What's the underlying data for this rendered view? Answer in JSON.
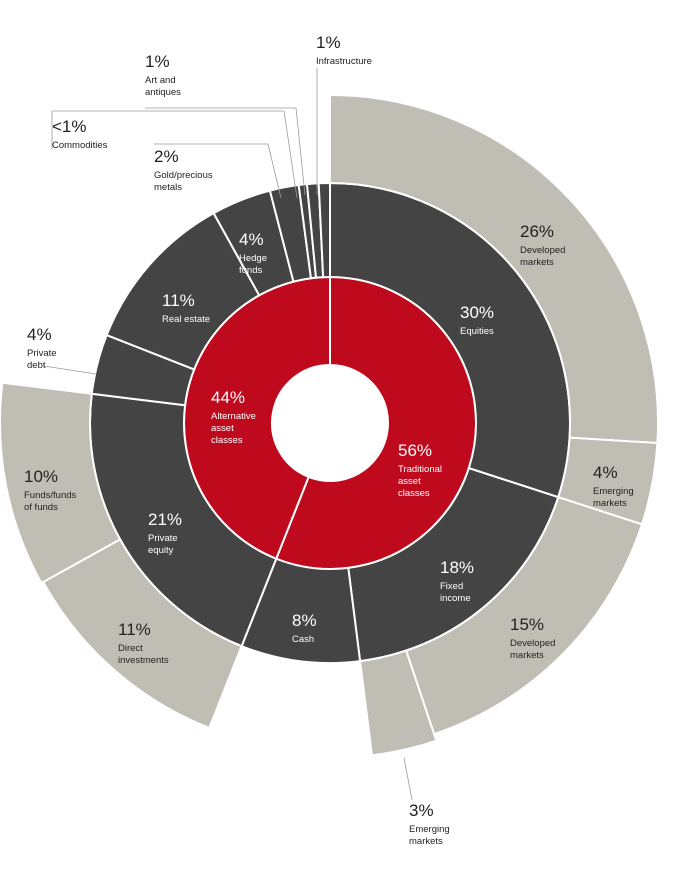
{
  "chart_data": {
    "type": "sunburst",
    "colors": {
      "inner": "#bf0a1e",
      "middle": "#444444",
      "outer": "#c0bdb5",
      "separator": "#ffffff",
      "text_dark": "#222222",
      "text_light": "#ffffff"
    },
    "rings": {
      "inner": [
        {
          "id": "traditional",
          "pct": "56%",
          "lines": [
            "Traditional",
            "asset",
            "classes"
          ],
          "value": 56
        },
        {
          "id": "alternative",
          "pct": "44%",
          "lines": [
            "Alternative",
            "asset",
            "classes"
          ],
          "value": 44
        }
      ],
      "middle": [
        {
          "id": "equities",
          "pct": "30%",
          "lines": [
            "Equities"
          ],
          "value": 30
        },
        {
          "id": "fixed-income",
          "pct": "18%",
          "lines": [
            "Fixed",
            "income"
          ],
          "value": 18
        },
        {
          "id": "cash",
          "pct": "8%",
          "lines": [
            "Cash"
          ],
          "value": 8
        },
        {
          "id": "private-equity",
          "pct": "21%",
          "lines": [
            "Private",
            "equity"
          ],
          "value": 21
        },
        {
          "id": "private-debt",
          "pct": "4%",
          "lines": [
            "Private",
            "debt"
          ],
          "value": 4
        },
        {
          "id": "real-estate",
          "pct": "11%",
          "lines": [
            "Real estate"
          ],
          "value": 11
        },
        {
          "id": "hedge-funds",
          "pct": "4%",
          "lines": [
            "Hedge",
            "funds"
          ],
          "value": 4
        },
        {
          "id": "gold",
          "pct": "2%",
          "lines": [
            "Gold/precious",
            "metals"
          ],
          "value": 2
        },
        {
          "id": "commodities",
          "pct": "<1%",
          "lines": [
            "Commodities"
          ],
          "value": 0.6
        },
        {
          "id": "art",
          "pct": "1%",
          "lines": [
            "Art and",
            "antiques"
          ],
          "value": 1
        },
        {
          "id": "infrastructure",
          "pct": "1%",
          "lines": [
            "Infrastructure"
          ],
          "value": 1
        }
      ],
      "outer": [
        {
          "id": "eq-developed",
          "pct": "26%",
          "lines": [
            "Developed",
            "markets"
          ],
          "value": 26
        },
        {
          "id": "eq-emerging",
          "pct": "4%",
          "lines": [
            "Emerging",
            "markets"
          ],
          "value": 4
        },
        {
          "id": "fi-developed",
          "pct": "15%",
          "lines": [
            "Developed",
            "markets"
          ],
          "value": 15
        },
        {
          "id": "fi-emerging",
          "pct": "3%",
          "lines": [
            "Emerging",
            "markets"
          ],
          "value": 3
        },
        {
          "id": "pe-direct",
          "pct": "11%",
          "lines": [
            "Direct",
            "investments"
          ],
          "value": 11
        },
        {
          "id": "pe-funds",
          "pct": "10%",
          "lines": [
            "Funds/funds",
            "of funds"
          ],
          "value": 10
        }
      ]
    }
  }
}
